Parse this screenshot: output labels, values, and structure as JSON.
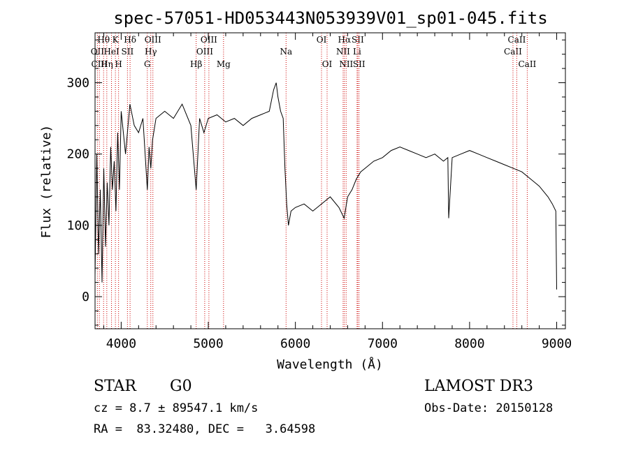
{
  "chart_data": {
    "type": "line",
    "title": "spec-57051-HD053443N053939V01_sp01-045.fits",
    "xlabel": "Wavelength (Å)",
    "ylabel": "Flux (relative)",
    "xlim": [
      3700,
      9100
    ],
    "ylim": [
      -45,
      370
    ],
    "x_ticks": [
      4000,
      5000,
      6000,
      7000,
      8000,
      9000
    ],
    "x_tick_labels": [
      "4000",
      "5000",
      "6000",
      "7000",
      "8000",
      "9000"
    ],
    "y_ticks": [
      0,
      100,
      200,
      300
    ],
    "y_tick_labels": [
      "0",
      "100",
      "200",
      "300"
    ],
    "grid": false,
    "series": [
      {
        "x": [
          3700,
          3720,
          3740,
          3760,
          3780,
          3800,
          3820,
          3840,
          3860,
          3880,
          3900,
          3920,
          3940,
          3960,
          3980,
          4000,
          4050,
          4100,
          4150,
          4200,
          4250,
          4300,
          4320,
          4340,
          4360,
          4400,
          4500,
          4600,
          4700,
          4800,
          4861,
          4900,
          4950,
          5000,
          5100,
          5200,
          5300,
          5400,
          5500,
          5600,
          5700,
          5750,
          5780,
          5800,
          5830,
          5860,
          5880,
          5900,
          5920,
          5950,
          6000,
          6100,
          6200,
          6300,
          6400,
          6500,
          6560,
          6600,
          6650,
          6700,
          6750,
          6800,
          6900,
          7000,
          7100,
          7200,
          7300,
          7400,
          7500,
          7600,
          7700,
          7750,
          7760,
          7800,
          7900,
          8000,
          8100,
          8200,
          8300,
          8400,
          8500,
          8600,
          8700,
          8800,
          8900,
          8950,
          8990,
          9000
        ],
        "y": [
          30,
          200,
          60,
          150,
          20,
          180,
          70,
          160,
          100,
          210,
          150,
          190,
          120,
          230,
          150,
          260,
          200,
          270,
          240,
          230,
          250,
          150,
          210,
          180,
          220,
          250,
          260,
          250,
          270,
          240,
          150,
          250,
          230,
          250,
          255,
          245,
          250,
          240,
          250,
          255,
          260,
          290,
          300,
          280,
          260,
          250,
          180,
          130,
          100,
          120,
          125,
          130,
          120,
          130,
          140,
          125,
          110,
          140,
          150,
          165,
          175,
          180,
          190,
          195,
          205,
          210,
          205,
          200,
          195,
          200,
          190,
          195,
          110,
          195,
          200,
          205,
          200,
          195,
          190,
          185,
          180,
          175,
          165,
          155,
          140,
          130,
          120,
          10
        ]
      }
    ],
    "lines": [
      {
        "wave": 3727,
        "label": "OII",
        "row": 2
      },
      {
        "wave": 3750,
        "label": "CIII",
        "row": 3
      },
      {
        "wave": 3798,
        "label": "Hθ",
        "row": 1
      },
      {
        "wave": 3835,
        "label": "Hη",
        "row": 3
      },
      {
        "wave": 3889,
        "label": "HeI",
        "row": 2
      },
      {
        "wave": 3934,
        "label": "K",
        "row": 1
      },
      {
        "wave": 3970,
        "label": "H",
        "row": 3
      },
      {
        "wave": 4072,
        "label": "SII",
        "row": 2
      },
      {
        "wave": 4102,
        "label": "Hδ",
        "row": 1
      },
      {
        "wave": 4300,
        "label": "G",
        "row": 3
      },
      {
        "wave": 4340,
        "label": "Hγ",
        "row": 2
      },
      {
        "wave": 4364,
        "label": "OIII",
        "row": 1
      },
      {
        "wave": 4861,
        "label": "Hβ",
        "row": 3
      },
      {
        "wave": 4959,
        "label": "OIII",
        "row": 2
      },
      {
        "wave": 5007,
        "label": "OIII",
        "row": 1
      },
      {
        "wave": 5175,
        "label": "Mg",
        "row": 3
      },
      {
        "wave": 5893,
        "label": "Na",
        "row": 2
      },
      {
        "wave": 6300,
        "label": "OI",
        "row": 1
      },
      {
        "wave": 6364,
        "label": "OI",
        "row": 3
      },
      {
        "wave": 6548,
        "label": "NII",
        "row": 2
      },
      {
        "wave": 6563,
        "label": "Hα",
        "row": 1
      },
      {
        "wave": 6583,
        "label": "NII",
        "row": 3
      },
      {
        "wave": 6708,
        "label": "Li",
        "row": 2
      },
      {
        "wave": 6716,
        "label": "SII",
        "row": 1
      },
      {
        "wave": 6731,
        "label": "SII",
        "row": 3
      },
      {
        "wave": 8498,
        "label": "CaII",
        "row": 2
      },
      {
        "wave": 8542,
        "label": "CaII",
        "row": 1
      },
      {
        "wave": 8662,
        "label": "CaII",
        "row": 3
      }
    ]
  },
  "info": {
    "object_type": "STAR",
    "subclass": "G0",
    "survey": "LAMOST DR3",
    "redshift": "cz = 8.7 ± 89547.1 km/s",
    "obs_date": "Obs-Date: 20150128",
    "coords": "RA =  83.32480, DEC =   3.64598"
  }
}
